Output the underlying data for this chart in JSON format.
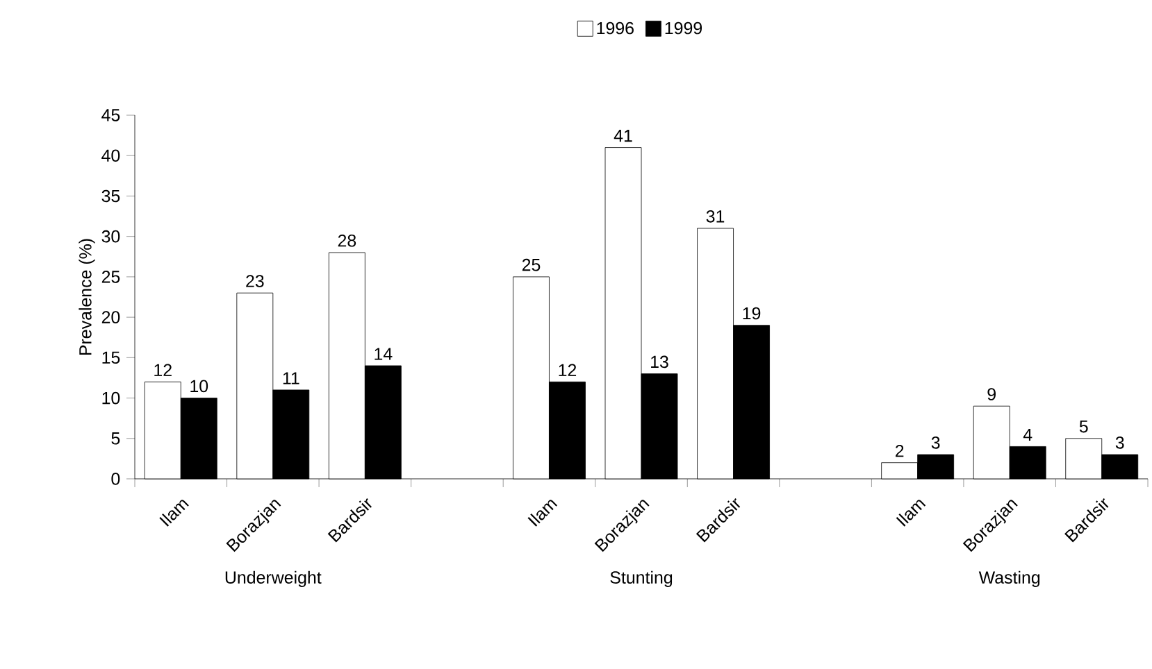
{
  "chart_data": {
    "type": "bar",
    "ylabel": "Prevalence (%)",
    "categories": [
      "Ilam",
      "Borazjan",
      "Bardsir",
      null,
      "Ilam",
      "Borazjan",
      "Bardsir",
      null,
      "Ilam",
      "Borazjan",
      "Bardsir"
    ],
    "series": [
      {
        "name": "1996",
        "color": "#ffffff",
        "values": [
          12,
          23,
          28,
          null,
          25,
          41,
          31,
          null,
          2,
          9,
          5
        ]
      },
      {
        "name": "1999",
        "color": "#000000",
        "values": [
          10,
          11,
          14,
          null,
          12,
          13,
          19,
          null,
          3,
          4,
          3
        ]
      }
    ],
    "ylim": [
      0,
      45
    ],
    "yticks": [
      0,
      5,
      10,
      15,
      20,
      25,
      30,
      35,
      40,
      45
    ],
    "data_labels": true,
    "legend": "top",
    "annotations": [
      "Underweight",
      "Stunting",
      "Wasting"
    ]
  }
}
